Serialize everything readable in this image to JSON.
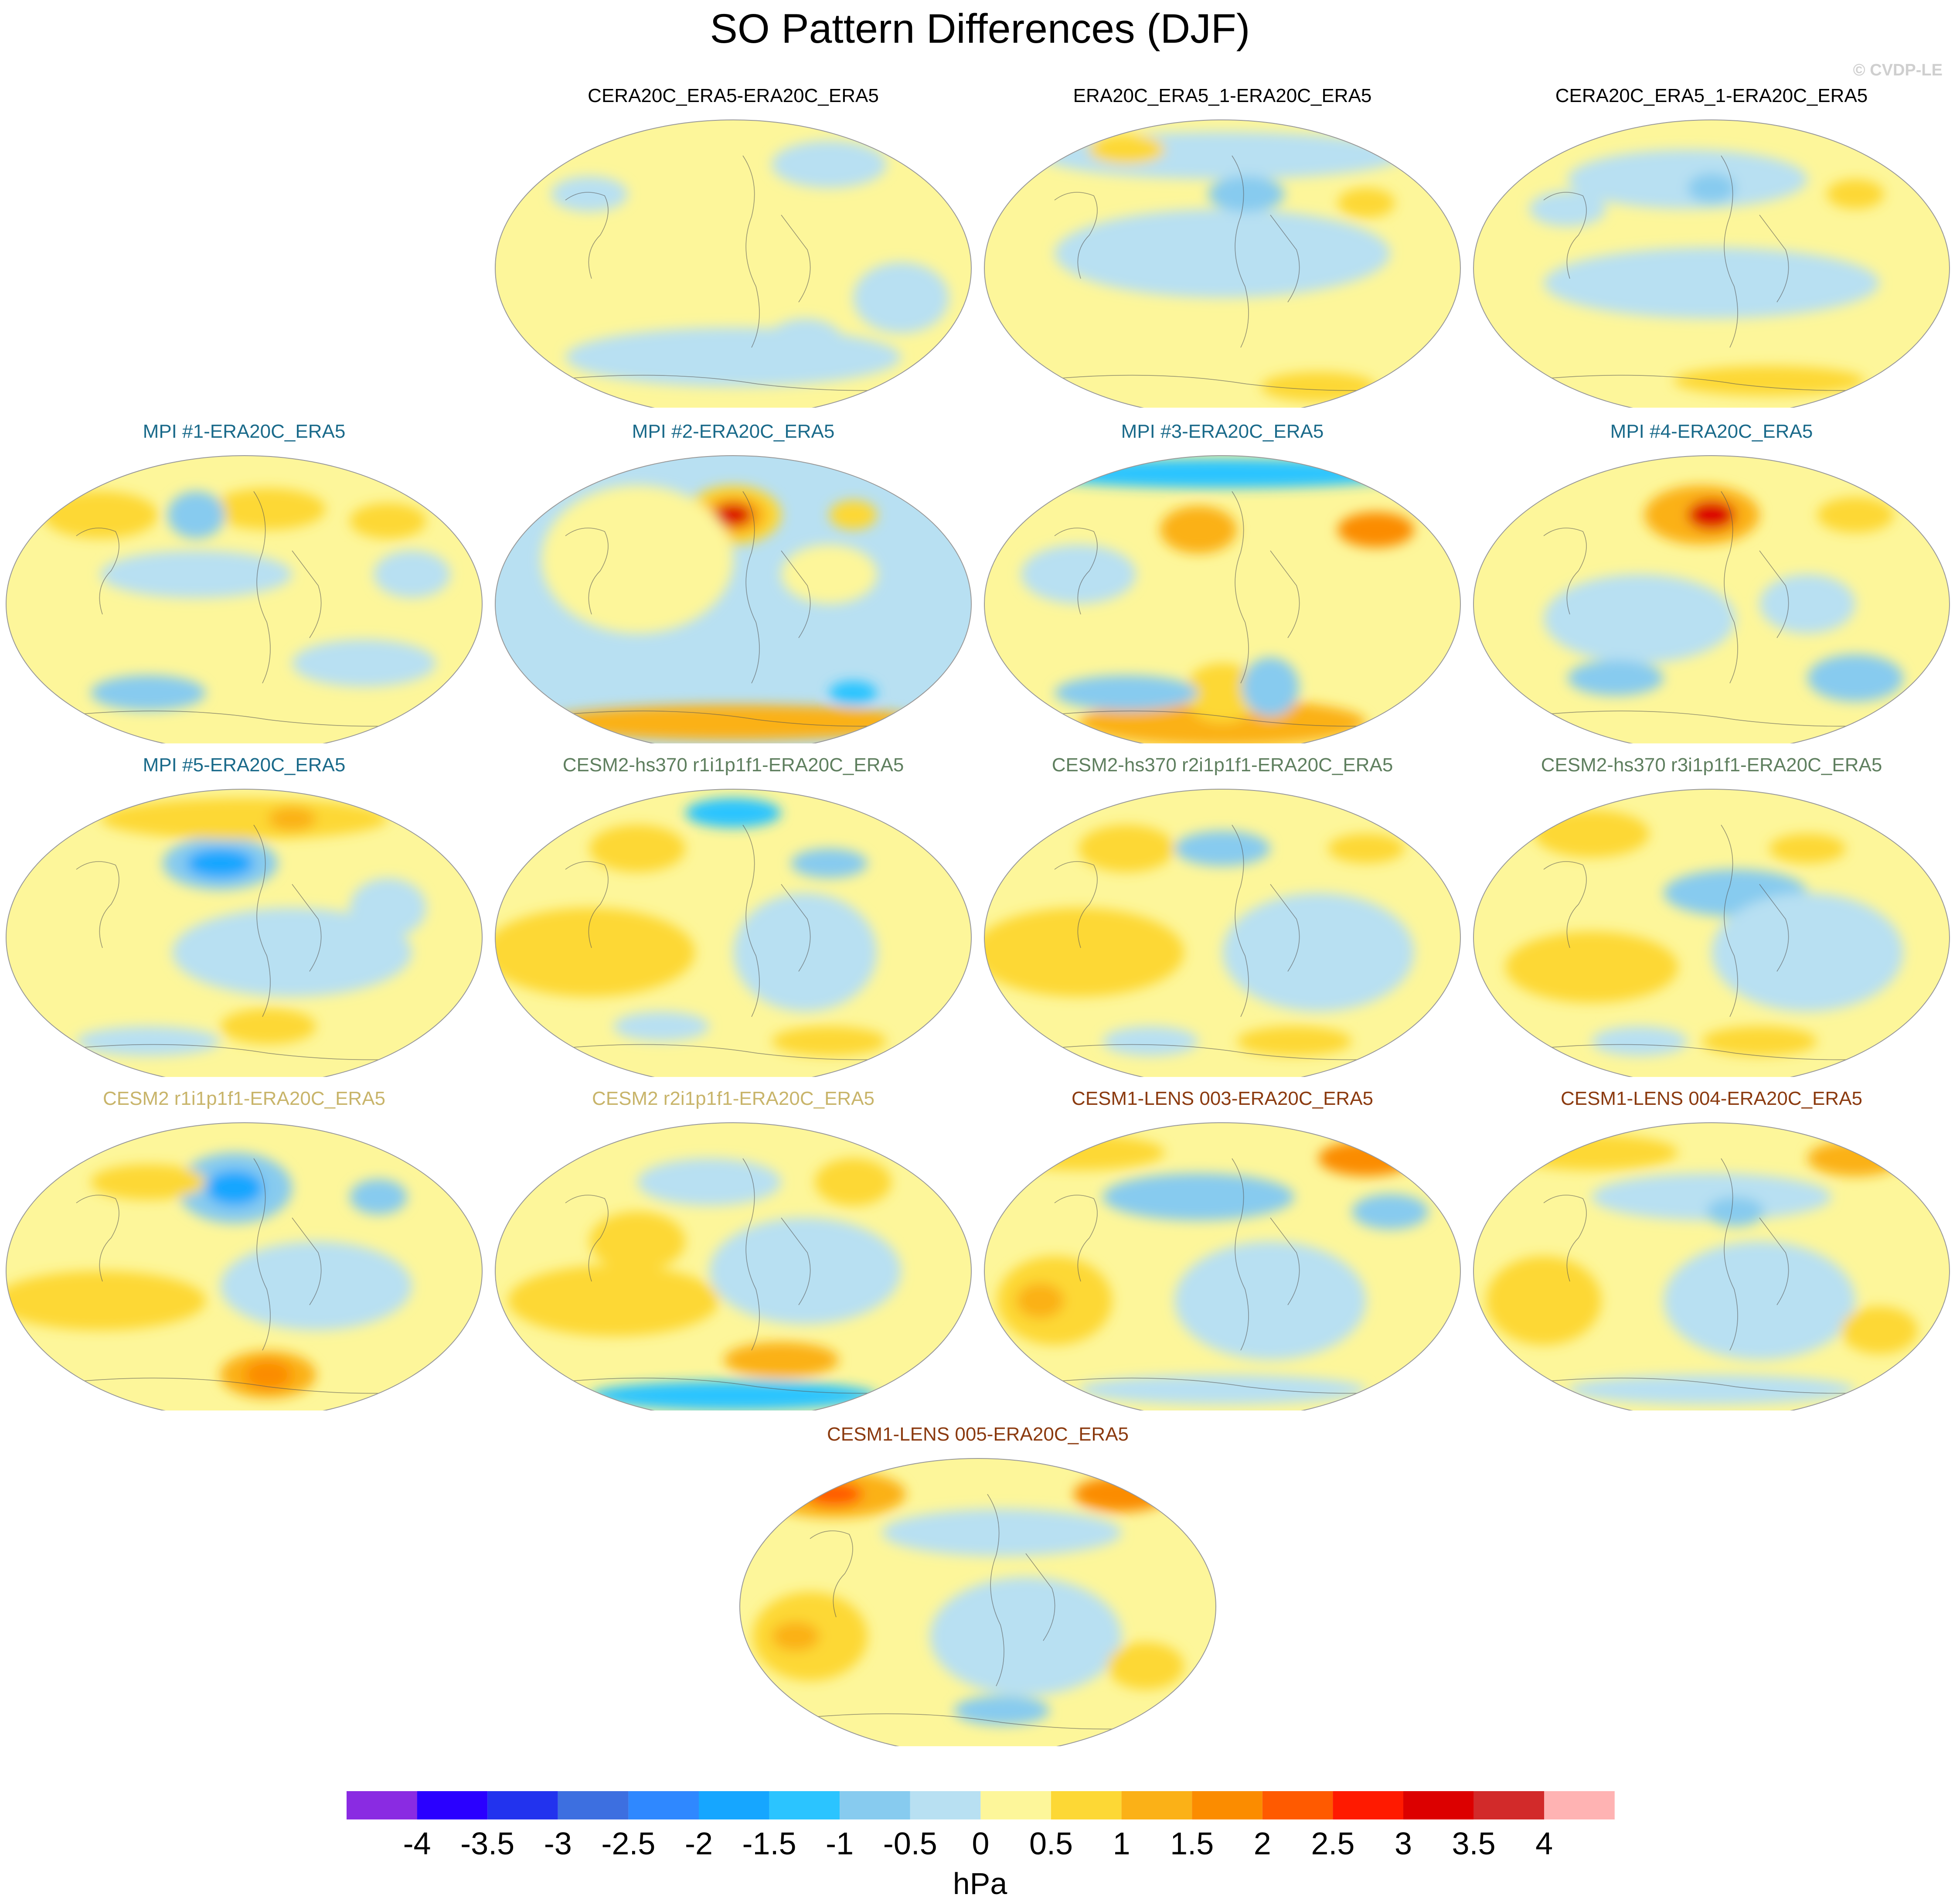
{
  "title": "SO Pattern Differences (DJF)",
  "watermark": "© CVDP-LE",
  "colors": {
    "land_outline": "#555555",
    "map_border": "#999999",
    "title_black": "#000000",
    "title_mpi": "#1a6a8a",
    "title_cesm2hs": "#5f7f5f",
    "title_cesm2": "#c8b46a",
    "title_cesm1": "#8b3a0f"
  },
  "colorbar": {
    "colors": [
      "#8a2be2",
      "#2a00ff",
      "#2233ee",
      "#3d6fe0",
      "#2f88ff",
      "#16a6ff",
      "#2bc4ff",
      "#87cbef",
      "#b8e0f2",
      "#fdf69a",
      "#fdd835",
      "#fbb117",
      "#fb8c00",
      "#ff5a00",
      "#ff1a00",
      "#dc0000",
      "#d22a2a",
      "#ffb3b3"
    ],
    "ticks": [
      "-4",
      "-3.5",
      "-3",
      "-2.5",
      "-2",
      "-1.5",
      "-1",
      "-0.5",
      "0",
      "0.5",
      "1",
      "1.5",
      "2",
      "2.5",
      "3",
      "3.5",
      "4"
    ],
    "unit": "hPa"
  },
  "panels": [
    {
      "id": "cera20c-era5",
      "title": "CERA20C_ERA5-ERA20C_ERA5",
      "title_color": "title_black",
      "row": 0,
      "col": 1,
      "base": 9,
      "blobs": [
        [
          0.5,
          0.8,
          0.35,
          0.1,
          8
        ],
        [
          0.7,
          0.15,
          0.12,
          0.08,
          8
        ],
        [
          0.2,
          0.25,
          0.08,
          0.06,
          8
        ],
        [
          0.85,
          0.6,
          0.1,
          0.12,
          8
        ],
        [
          0.65,
          0.75,
          0.08,
          0.08,
          8
        ]
      ]
    },
    {
      "id": "era20c-era5-1",
      "title": "ERA20C_ERA5_1-ERA20C_ERA5",
      "title_color": "title_black",
      "row": 0,
      "col": 2,
      "base": 9,
      "blobs": [
        [
          0.5,
          0.12,
          0.38,
          0.08,
          8
        ],
        [
          0.5,
          0.45,
          0.35,
          0.15,
          8
        ],
        [
          0.55,
          0.25,
          0.08,
          0.06,
          7
        ],
        [
          0.7,
          0.9,
          0.12,
          0.05,
          10
        ],
        [
          0.3,
          0.1,
          0.08,
          0.05,
          10
        ],
        [
          0.8,
          0.28,
          0.06,
          0.05,
          10
        ]
      ]
    },
    {
      "id": "cera20c-era5-1",
      "title": "CERA20C_ERA5_1-ERA20C_ERA5",
      "title_color": "title_black",
      "row": 0,
      "col": 3,
      "base": 9,
      "blobs": [
        [
          0.45,
          0.2,
          0.25,
          0.1,
          8
        ],
        [
          0.5,
          0.55,
          0.35,
          0.12,
          8
        ],
        [
          0.5,
          0.23,
          0.05,
          0.05,
          7
        ],
        [
          0.62,
          0.88,
          0.2,
          0.05,
          10
        ],
        [
          0.8,
          0.25,
          0.06,
          0.05,
          10
        ],
        [
          0.2,
          0.3,
          0.08,
          0.06,
          8
        ]
      ]
    },
    {
      "id": "mpi-1",
      "title": "MPI #1-ERA20C_ERA5",
      "title_color": "title_mpi",
      "row": 1,
      "col": 0,
      "base": 9,
      "blobs": [
        [
          0.2,
          0.2,
          0.12,
          0.08,
          10
        ],
        [
          0.55,
          0.18,
          0.12,
          0.07,
          10
        ],
        [
          0.8,
          0.22,
          0.08,
          0.06,
          10
        ],
        [
          0.4,
          0.2,
          0.06,
          0.08,
          7
        ],
        [
          0.4,
          0.4,
          0.2,
          0.08,
          8
        ],
        [
          0.3,
          0.8,
          0.12,
          0.06,
          7
        ],
        [
          0.75,
          0.7,
          0.15,
          0.08,
          8
        ],
        [
          0.85,
          0.4,
          0.08,
          0.08,
          8
        ]
      ]
    },
    {
      "id": "mpi-2",
      "title": "MPI #2-ERA20C_ERA5",
      "title_color": "title_mpi",
      "row": 1,
      "col": 1,
      "base": 8,
      "blobs": [
        [
          0.5,
          0.2,
          0.1,
          0.1,
          10
        ],
        [
          0.5,
          0.2,
          0.07,
          0.07,
          11
        ],
        [
          0.5,
          0.2,
          0.04,
          0.04,
          15
        ],
        [
          0.5,
          0.9,
          0.4,
          0.06,
          11
        ],
        [
          0.3,
          0.35,
          0.2,
          0.25,
          9
        ],
        [
          0.7,
          0.4,
          0.1,
          0.1,
          9
        ],
        [
          0.75,
          0.2,
          0.05,
          0.05,
          10
        ],
        [
          0.75,
          0.8,
          0.05,
          0.04,
          6
        ]
      ]
    },
    {
      "id": "mpi-3",
      "title": "MPI #3-ERA20C_ERA5",
      "title_color": "title_mpi",
      "row": 1,
      "col": 2,
      "base": 9,
      "blobs": [
        [
          0.5,
          0.06,
          0.4,
          0.05,
          6
        ],
        [
          0.5,
          0.9,
          0.3,
          0.08,
          11
        ],
        [
          0.5,
          0.8,
          0.08,
          0.1,
          10
        ],
        [
          0.45,
          0.25,
          0.08,
          0.08,
          11
        ],
        [
          0.82,
          0.25,
          0.08,
          0.06,
          12
        ],
        [
          0.6,
          0.78,
          0.06,
          0.1,
          7
        ],
        [
          0.3,
          0.8,
          0.15,
          0.06,
          7
        ],
        [
          0.2,
          0.4,
          0.12,
          0.1,
          8
        ]
      ]
    },
    {
      "id": "mpi-4",
      "title": "MPI #4-ERA20C_ERA5",
      "title_color": "title_mpi",
      "row": 1,
      "col": 3,
      "base": 9,
      "blobs": [
        [
          0.48,
          0.2,
          0.12,
          0.1,
          11
        ],
        [
          0.5,
          0.2,
          0.05,
          0.05,
          15
        ],
        [
          0.35,
          0.55,
          0.2,
          0.15,
          8
        ],
        [
          0.7,
          0.5,
          0.1,
          0.1,
          8
        ],
        [
          0.8,
          0.75,
          0.1,
          0.08,
          7
        ],
        [
          0.3,
          0.75,
          0.1,
          0.06,
          7
        ],
        [
          0.8,
          0.2,
          0.08,
          0.06,
          10
        ]
      ]
    },
    {
      "id": "mpi-5",
      "title": "MPI #5-ERA20C_ERA5",
      "title_color": "title_mpi",
      "row": 2,
      "col": 0,
      "base": 9,
      "blobs": [
        [
          0.45,
          0.25,
          0.12,
          0.09,
          7
        ],
        [
          0.45,
          0.25,
          0.07,
          0.05,
          5
        ],
        [
          0.5,
          0.1,
          0.3,
          0.07,
          10
        ],
        [
          0.6,
          0.1,
          0.05,
          0.04,
          11
        ],
        [
          0.6,
          0.55,
          0.25,
          0.15,
          8
        ],
        [
          0.8,
          0.4,
          0.08,
          0.1,
          8
        ],
        [
          0.55,
          0.8,
          0.1,
          0.06,
          10
        ],
        [
          0.3,
          0.85,
          0.15,
          0.05,
          8
        ]
      ]
    },
    {
      "id": "cesm2hs-r1",
      "title": "CESM2-hs370 r1i1p1f1-ERA20C_ERA5",
      "title_color": "title_cesm2hs",
      "row": 2,
      "col": 1,
      "base": 9,
      "blobs": [
        [
          0.2,
          0.55,
          0.22,
          0.15,
          10
        ],
        [
          0.3,
          0.2,
          0.1,
          0.08,
          10
        ],
        [
          0.5,
          0.08,
          0.1,
          0.05,
          6
        ],
        [
          0.7,
          0.25,
          0.08,
          0.05,
          7
        ],
        [
          0.65,
          0.55,
          0.15,
          0.2,
          8
        ],
        [
          0.7,
          0.85,
          0.12,
          0.05,
          10
        ],
        [
          0.35,
          0.8,
          0.1,
          0.05,
          8
        ]
      ]
    },
    {
      "id": "cesm2hs-r2",
      "title": "CESM2-hs370 r2i1p1f1-ERA20C_ERA5",
      "title_color": "title_cesm2hs",
      "row": 2,
      "col": 2,
      "base": 9,
      "blobs": [
        [
          0.2,
          0.55,
          0.22,
          0.15,
          10
        ],
        [
          0.3,
          0.2,
          0.1,
          0.08,
          10
        ],
        [
          0.5,
          0.2,
          0.1,
          0.06,
          7
        ],
        [
          0.8,
          0.2,
          0.08,
          0.05,
          10
        ],
        [
          0.7,
          0.55,
          0.2,
          0.2,
          8
        ],
        [
          0.65,
          0.85,
          0.12,
          0.05,
          10
        ],
        [
          0.35,
          0.85,
          0.1,
          0.05,
          8
        ]
      ]
    },
    {
      "id": "cesm2hs-r3",
      "title": "CESM2-hs370 r3i1p1f1-ERA20C_ERA5",
      "title_color": "title_cesm2hs",
      "row": 2,
      "col": 3,
      "base": 9,
      "blobs": [
        [
          0.25,
          0.15,
          0.12,
          0.08,
          10
        ],
        [
          0.7,
          0.2,
          0.08,
          0.05,
          10
        ],
        [
          0.55,
          0.35,
          0.15,
          0.08,
          7
        ],
        [
          0.7,
          0.55,
          0.2,
          0.2,
          8
        ],
        [
          0.25,
          0.6,
          0.18,
          0.12,
          10
        ],
        [
          0.6,
          0.85,
          0.12,
          0.05,
          10
        ],
        [
          0.35,
          0.85,
          0.1,
          0.05,
          8
        ]
      ]
    },
    {
      "id": "cesm2-r1",
      "title": "CESM2 r1i1p1f1-ERA20C_ERA5",
      "title_color": "title_cesm2",
      "row": 3,
      "col": 0,
      "base": 9,
      "blobs": [
        [
          0.48,
          0.22,
          0.12,
          0.12,
          7
        ],
        [
          0.48,
          0.22,
          0.06,
          0.06,
          5
        ],
        [
          0.78,
          0.25,
          0.06,
          0.06,
          7
        ],
        [
          0.2,
          0.6,
          0.22,
          0.1,
          10
        ],
        [
          0.55,
          0.85,
          0.1,
          0.08,
          11
        ],
        [
          0.55,
          0.85,
          0.05,
          0.05,
          12
        ],
        [
          0.65,
          0.55,
          0.2,
          0.15,
          8
        ],
        [
          0.3,
          0.2,
          0.12,
          0.06,
          10
        ]
      ]
    },
    {
      "id": "cesm2-r2",
      "title": "CESM2 r2i1p1f1-ERA20C_ERA5",
      "title_color": "title_cesm2",
      "row": 3,
      "col": 1,
      "base": 9,
      "blobs": [
        [
          0.25,
          0.6,
          0.22,
          0.12,
          10
        ],
        [
          0.3,
          0.4,
          0.1,
          0.1,
          10
        ],
        [
          0.75,
          0.2,
          0.08,
          0.08,
          10
        ],
        [
          0.6,
          0.8,
          0.12,
          0.06,
          11
        ],
        [
          0.5,
          0.92,
          0.3,
          0.05,
          6
        ],
        [
          0.65,
          0.5,
          0.2,
          0.18,
          8
        ],
        [
          0.45,
          0.2,
          0.15,
          0.08,
          8
        ]
      ]
    },
    {
      "id": "cesm1-003",
      "title": "CESM1-LENS 003-ERA20C_ERA5",
      "title_color": "title_cesm1",
      "row": 3,
      "col": 2,
      "base": 9,
      "blobs": [
        [
          0.2,
          0.1,
          0.18,
          0.06,
          10
        ],
        [
          0.8,
          0.12,
          0.1,
          0.06,
          12
        ],
        [
          0.45,
          0.25,
          0.2,
          0.08,
          7
        ],
        [
          0.85,
          0.3,
          0.08,
          0.06,
          7
        ],
        [
          0.15,
          0.6,
          0.12,
          0.15,
          10
        ],
        [
          0.12,
          0.6,
          0.05,
          0.06,
          11
        ],
        [
          0.6,
          0.6,
          0.2,
          0.2,
          8
        ],
        [
          0.5,
          0.9,
          0.3,
          0.05,
          8
        ]
      ]
    },
    {
      "id": "cesm1-004",
      "title": "CESM1-LENS 004-ERA20C_ERA5",
      "title_color": "title_cesm1",
      "row": 3,
      "col": 3,
      "base": 9,
      "blobs": [
        [
          0.25,
          0.1,
          0.18,
          0.06,
          10
        ],
        [
          0.8,
          0.12,
          0.1,
          0.06,
          11
        ],
        [
          0.5,
          0.25,
          0.25,
          0.08,
          8
        ],
        [
          0.55,
          0.3,
          0.06,
          0.05,
          7
        ],
        [
          0.15,
          0.6,
          0.12,
          0.15,
          10
        ],
        [
          0.6,
          0.6,
          0.2,
          0.2,
          8
        ],
        [
          0.85,
          0.7,
          0.08,
          0.08,
          10
        ],
        [
          0.5,
          0.9,
          0.3,
          0.05,
          8
        ]
      ]
    },
    {
      "id": "cesm1-005",
      "title": "CESM1-LENS 005-ERA20C_ERA5",
      "title_color": "title_cesm1",
      "row": 4,
      "col": 1.5,
      "base": 9,
      "blobs": [
        [
          0.2,
          0.12,
          0.15,
          0.08,
          11
        ],
        [
          0.2,
          0.12,
          0.06,
          0.04,
          13
        ],
        [
          0.8,
          0.12,
          0.1,
          0.06,
          12
        ],
        [
          0.55,
          0.25,
          0.25,
          0.08,
          8
        ],
        [
          0.15,
          0.6,
          0.12,
          0.15,
          10
        ],
        [
          0.12,
          0.6,
          0.05,
          0.05,
          11
        ],
        [
          0.6,
          0.6,
          0.2,
          0.2,
          8
        ],
        [
          0.55,
          0.85,
          0.1,
          0.05,
          7
        ],
        [
          0.85,
          0.7,
          0.08,
          0.08,
          10
        ]
      ]
    }
  ]
}
